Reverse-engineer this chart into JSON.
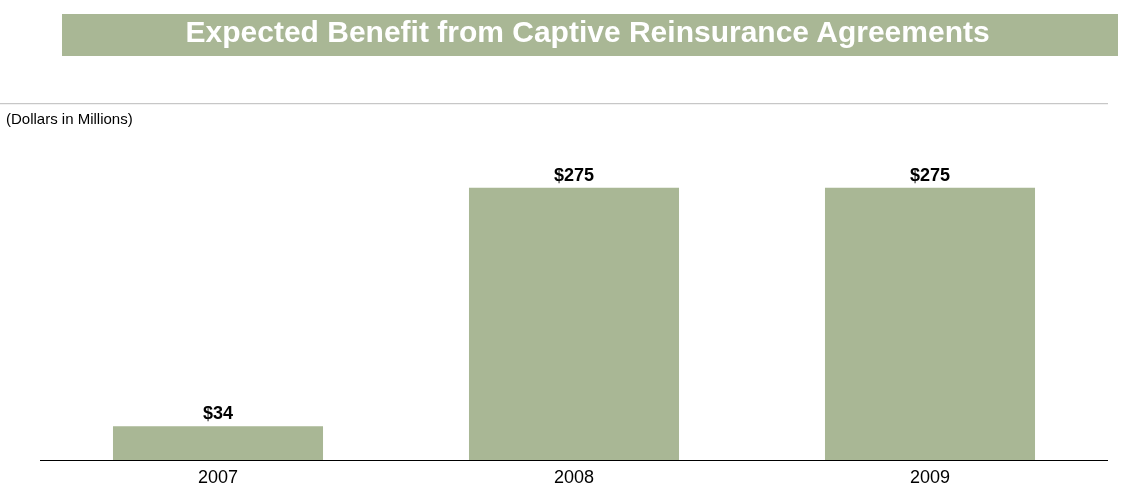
{
  "chart_data": {
    "type": "bar",
    "title": "Expected Benefit from Captive Reinsurance Agreements",
    "subtitle": "(Dollars in Millions)",
    "categories": [
      "2007",
      "2008",
      "2009"
    ],
    "values": [
      34,
      275,
      275
    ],
    "value_labels": [
      "$34",
      "$275",
      "$275"
    ],
    "color": "#a9b795",
    "legend": false,
    "tick_labels": "x"
  }
}
